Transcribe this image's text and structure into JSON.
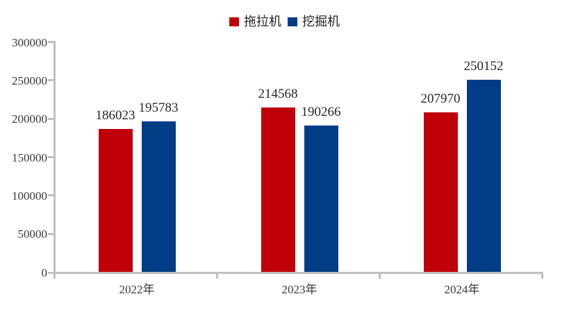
{
  "chart_data": {
    "type": "bar",
    "title": "",
    "categories": [
      "2022年",
      "2023年",
      "2024年"
    ],
    "series": [
      {
        "name": "拖拉机",
        "color": "#C00008",
        "values": [
          186023,
          214568,
          207970
        ]
      },
      {
        "name": "挖掘机",
        "color": "#003D87",
        "values": [
          195783,
          190266,
          250152
        ]
      }
    ],
    "ylim": [
      0,
      300000
    ],
    "yticks": [
      0,
      50000,
      100000,
      150000,
      200000,
      250000,
      300000
    ],
    "legend_position": "top-center",
    "grid": false,
    "data_labels": true,
    "axis_color": "#BFBFBF",
    "bar_label_color": "#262626",
    "tick_label_color": "#3a3a3a"
  }
}
